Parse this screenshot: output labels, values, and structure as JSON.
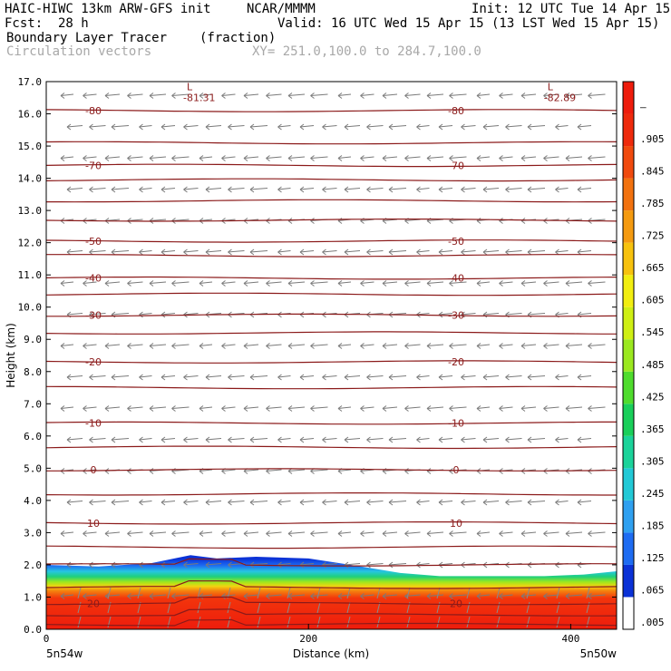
{
  "header": {
    "model": "HAIC-HIWC 13km ARW-GFS init",
    "org": "NCAR/MMMM",
    "init": "Init: 12 UTC Tue 14 Apr 15",
    "fcst_label": "Fcst:",
    "fcst_value": "28 h",
    "valid": "Valid: 16 UTC Wed 15 Apr 15 (13 LST Wed 15 Apr 15)",
    "field1": "Boundary Layer Tracer",
    "field1_units": "(fraction)",
    "field2": "Circulation vectors",
    "xsect": "XY= 251.0,100.0 to 284.7,100.0"
  },
  "chart_data": {
    "type": "heatmap",
    "ylabel": "Height (km)",
    "xlabel": "Distance (km)",
    "xlim": [
      0,
      435
    ],
    "ylim": [
      0,
      17
    ],
    "yticks": [
      "0.0",
      "1.0",
      "2.0",
      "3.0",
      "4.0",
      "5.0",
      "6.0",
      "7.0",
      "8.0",
      "9.0",
      "10.0",
      "11.0",
      "12.0",
      "13.0",
      "14.0",
      "15.0",
      "16.0",
      "17.0"
    ],
    "xticks": [
      {
        "value": 0,
        "label": "0"
      },
      {
        "value": 200,
        "label": "200"
      },
      {
        "value": 400,
        "label": "400"
      }
    ],
    "x_endpoint_labels": {
      "left": "5n54w",
      "right": "5n50w"
    },
    "colorbar_labels": [
      ".005",
      ".065",
      ".125",
      ".185",
      ".245",
      ".305",
      ".365",
      ".425",
      ".485",
      ".545",
      ".605",
      ".665",
      ".725",
      ".785",
      ".845",
      ".905",
      "–"
    ],
    "colorbar_colors": [
      "#ffffff",
      "#0b32d6",
      "#1e6cf2",
      "#2fa0f0",
      "#22c9d6",
      "#1bd39a",
      "#19cf5a",
      "#4fdc2d",
      "#9be81f",
      "#cfef14",
      "#f2ee10",
      "#f7c20e",
      "#f49a10",
      "#f2720f",
      "#f04a0e",
      "#ee2a0c",
      "#ee1c0c"
    ],
    "contours": [
      {
        "height_km": 0.15,
        "label": ""
      },
      {
        "height_km": 0.45,
        "label": ""
      },
      {
        "height_km": 0.8,
        "label": "20"
      },
      {
        "height_km": 1.3,
        "label": ""
      },
      {
        "height_km": 2.0,
        "label": ""
      },
      {
        "height_km": 2.55,
        "label": ""
      },
      {
        "height_km": 3.3,
        "label": "10"
      },
      {
        "height_km": 4.2,
        "label": ""
      },
      {
        "height_km": 4.95,
        "label": "0"
      },
      {
        "height_km": 5.65,
        "label": ""
      },
      {
        "height_km": 6.4,
        "label": "-10"
      },
      {
        "height_km": 7.5,
        "label": ""
      },
      {
        "height_km": 8.3,
        "label": "-20"
      },
      {
        "height_km": 9.2,
        "label": ""
      },
      {
        "height_km": 9.75,
        "label": "-30"
      },
      {
        "height_km": 10.4,
        "label": ""
      },
      {
        "height_km": 10.9,
        "label": "-40"
      },
      {
        "height_km": 11.6,
        "label": ""
      },
      {
        "height_km": 12.05,
        "label": "-50"
      },
      {
        "height_km": 12.7,
        "label": ""
      },
      {
        "height_km": 13.3,
        "label": ""
      },
      {
        "height_km": 13.95,
        "label": ""
      },
      {
        "height_km": 14.4,
        "label": "-70"
      },
      {
        "height_km": 15.1,
        "label": ""
      },
      {
        "height_km": 16.1,
        "label": "-80"
      }
    ],
    "lows": [
      {
        "x_km": 110,
        "height_km": 16.45,
        "label": "-81.31"
      },
      {
        "x_km": 385,
        "height_km": 16.45,
        "label": "-82.89"
      }
    ],
    "tracer_top_km": [
      [
        0,
        2.0
      ],
      [
        40,
        1.95
      ],
      [
        80,
        2.05
      ],
      [
        110,
        2.3
      ],
      [
        130,
        2.2
      ],
      [
        160,
        2.25
      ],
      [
        200,
        2.2
      ],
      [
        240,
        1.95
      ],
      [
        270,
        1.75
      ],
      [
        300,
        1.65
      ],
      [
        340,
        1.65
      ],
      [
        380,
        1.65
      ],
      [
        410,
        1.7
      ],
      [
        435,
        1.8
      ]
    ]
  }
}
